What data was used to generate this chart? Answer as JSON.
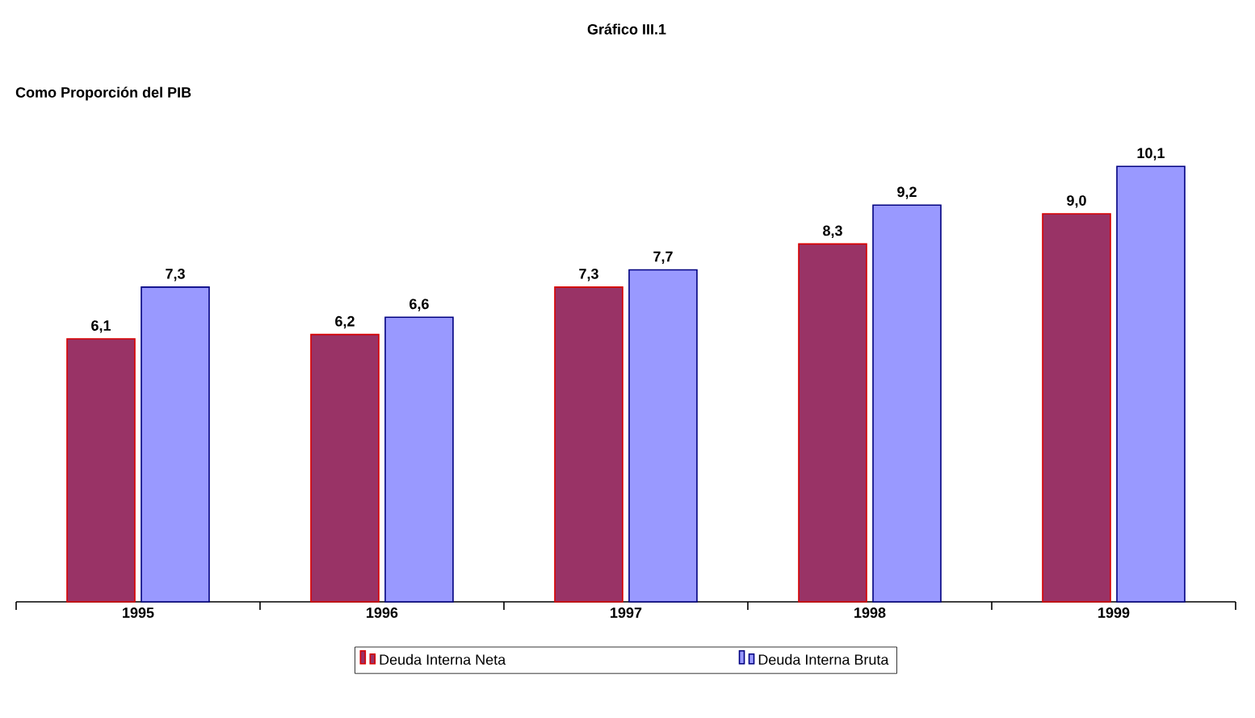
{
  "chart_data": {
    "type": "bar",
    "title": "Gráfico III.1",
    "subtitle": "Como Proporción del PIB",
    "categories": [
      "1995",
      "1996",
      "1997",
      "1998",
      "1999"
    ],
    "series": [
      {
        "name": "Deuda Interna Neta",
        "color": "#993366",
        "values": [
          6.1,
          6.2,
          7.3,
          8.3,
          9.0
        ],
        "value_labels": [
          "6,1",
          "6,2",
          "7,3",
          "8,3",
          "9,0"
        ]
      },
      {
        "name": "Deuda Interna Bruta",
        "color": "#9999ff",
        "values": [
          7.3,
          6.6,
          7.7,
          9.2,
          10.1
        ],
        "value_labels": [
          "7,3",
          "6,6",
          "7,7",
          "9,2",
          "10,1"
        ]
      }
    ],
    "legend": "bottom"
  }
}
